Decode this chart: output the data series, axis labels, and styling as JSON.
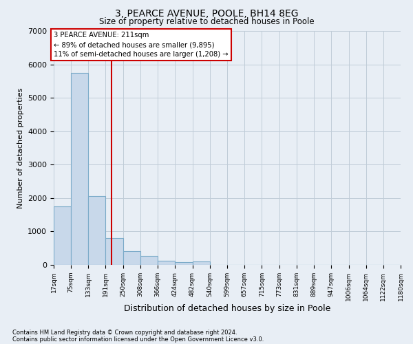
{
  "title": "3, PEARCE AVENUE, POOLE, BH14 8EG",
  "subtitle": "Size of property relative to detached houses in Poole",
  "xlabel": "Distribution of detached houses by size in Poole",
  "ylabel": "Number of detached properties",
  "bins": [
    17,
    75,
    133,
    191,
    250,
    308,
    366,
    424,
    482,
    540,
    599,
    657,
    715,
    773,
    831,
    889,
    947,
    1006,
    1064,
    1122,
    1180
  ],
  "bin_labels": [
    "17sqm",
    "75sqm",
    "133sqm",
    "191sqm",
    "250sqm",
    "308sqm",
    "366sqm",
    "424sqm",
    "482sqm",
    "540sqm",
    "599sqm",
    "657sqm",
    "715sqm",
    "773sqm",
    "831sqm",
    "889sqm",
    "947sqm",
    "1006sqm",
    "1064sqm",
    "1122sqm",
    "1180sqm"
  ],
  "counts": [
    1750,
    5750,
    2050,
    800,
    420,
    270,
    130,
    75,
    100,
    0,
    0,
    0,
    0,
    0,
    0,
    0,
    0,
    0,
    0,
    0
  ],
  "bar_color": "#c8d8ea",
  "bar_edge_color": "#7aaac8",
  "property_line_x": 211,
  "property_line_color": "#cc0000",
  "grid_color": "#c0ccd8",
  "background_color": "#e8eef5",
  "ylim": [
    0,
    7000
  ],
  "yticks": [
    0,
    1000,
    2000,
    3000,
    4000,
    5000,
    6000,
    7000
  ],
  "annotation_line1": "3 PEARCE AVENUE: 211sqm",
  "annotation_line2": "← 89% of detached houses are smaller (9,895)",
  "annotation_line3": "11% of semi-detached houses are larger (1,208) →",
  "annotation_box_color": "#cc0000",
  "footnote1": "Contains HM Land Registry data © Crown copyright and database right 2024.",
  "footnote2": "Contains public sector information licensed under the Open Government Licence v3.0."
}
